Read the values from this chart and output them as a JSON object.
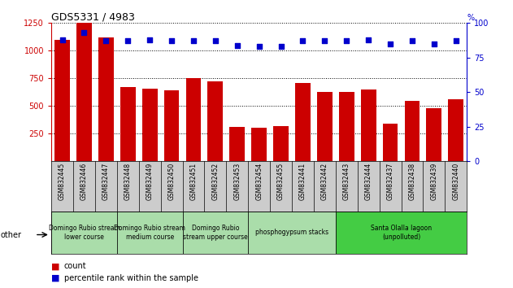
{
  "title": "GDS5331 / 4983",
  "samples": [
    "GSM832445",
    "GSM832446",
    "GSM832447",
    "GSM832448",
    "GSM832449",
    "GSM832450",
    "GSM832451",
    "GSM832452",
    "GSM832453",
    "GSM832454",
    "GSM832455",
    "GSM832441",
    "GSM832442",
    "GSM832443",
    "GSM832444",
    "GSM832437",
    "GSM832438",
    "GSM832439",
    "GSM832440"
  ],
  "counts": [
    1100,
    1250,
    1120,
    670,
    660,
    640,
    750,
    720,
    310,
    300,
    320,
    710,
    630,
    625,
    650,
    340,
    545,
    480,
    560
  ],
  "percentiles": [
    88,
    93,
    87,
    87,
    88,
    87,
    87,
    87,
    84,
    83,
    83,
    87,
    87,
    87,
    88,
    85,
    87,
    85,
    87
  ],
  "bar_color": "#cc0000",
  "dot_color": "#0000cc",
  "ylim_left": [
    0,
    1250
  ],
  "ylim_right": [
    0,
    100
  ],
  "yticks_left": [
    250,
    500,
    750,
    1000,
    1250
  ],
  "yticks_right": [
    0,
    25,
    50,
    75,
    100
  ],
  "group_positions": [
    {
      "start": 0,
      "end": 2,
      "label": "Domingo Rubio stream\nlower course",
      "color": "#aaddaa"
    },
    {
      "start": 3,
      "end": 5,
      "label": "Domingo Rubio stream\nmedium course",
      "color": "#aaddaa"
    },
    {
      "start": 6,
      "end": 8,
      "label": "Domingo Rubio\nstream upper course",
      "color": "#aaddaa"
    },
    {
      "start": 9,
      "end": 12,
      "label": "phosphogypsum stacks",
      "color": "#aaddaa"
    },
    {
      "start": 13,
      "end": 18,
      "label": "Santa Olalla lagoon\n(unpolluted)",
      "color": "#44cc44"
    }
  ],
  "other_label": "other",
  "legend_count_label": "count",
  "legend_pct_label": "percentile rank within the sample",
  "bg_color": "#ffffff",
  "tick_bg_color": "#cccccc",
  "left_axis_color": "#cc0000",
  "right_axis_color": "#0000cc"
}
